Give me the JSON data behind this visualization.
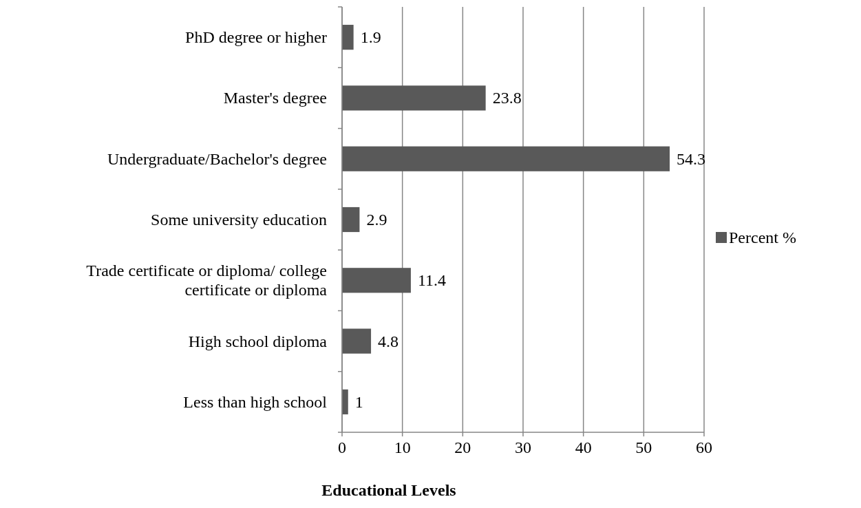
{
  "chart_data": {
    "type": "bar",
    "orientation": "horizontal",
    "xlabel": "Educational Levels",
    "categories": [
      "PhD degree or higher",
      "Master's degree",
      "Undergraduate/Bachelor's degree",
      "Some university education",
      "Trade certificate or diploma/ college certificate or diploma",
      "High school diploma",
      "Less than high school"
    ],
    "series": [
      {
        "name": "Percent %",
        "color": "#595959",
        "values": [
          1.9,
          23.8,
          54.3,
          2.9,
          11.4,
          4.8,
          1
        ]
      }
    ],
    "xlim": [
      0,
      60
    ],
    "xticks": [
      0,
      10,
      20,
      30,
      40,
      50,
      60
    ],
    "grid": "x",
    "legend": "right",
    "data_labels": true
  }
}
